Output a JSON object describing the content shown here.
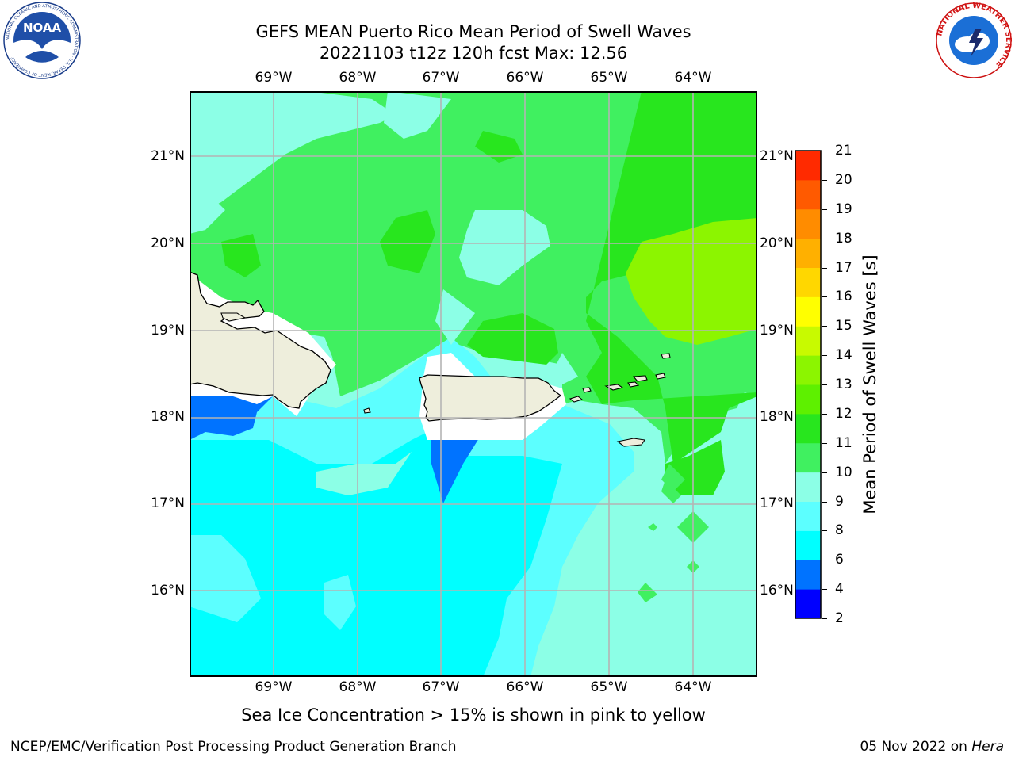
{
  "title_line1": "GEFS MEAN Puerto Rico Mean Period of Swell Waves",
  "title_line2": "20221103 t12z 120h fcst   Max: 12.56",
  "lon_ticks": [
    "69°W",
    "68°W",
    "67°W",
    "66°W",
    "65°W",
    "64°W"
  ],
  "lat_ticks": [
    "21°N",
    "20°N",
    "19°N",
    "18°N",
    "17°N",
    "16°N"
  ],
  "colorbar": {
    "label": "Mean Period of Swell Waves [s]",
    "ticks": [
      "2",
      "4",
      "6",
      "8",
      "9",
      "10",
      "11",
      "12",
      "13",
      "14",
      "15",
      "16",
      "17",
      "18",
      "19",
      "20",
      "21"
    ],
    "colors": [
      "#0000ff",
      "#0073ff",
      "#00ffff",
      "#5cffff",
      "#8cffe6",
      "#40f060",
      "#28e61e",
      "#5ef000",
      "#8cf500",
      "#c8fa00",
      "#ffff00",
      "#ffd700",
      "#ffb000",
      "#ff8c00",
      "#ff5a00",
      "#ff2a00",
      "#ff0000"
    ]
  },
  "ice_note": "Sea Ice Concentration > 15% is shown in pink to yellow",
  "footer_left": "NCEP/EMC/Verification Post Processing Product Generation Branch",
  "footer_date": "05 Nov 2022 on",
  "footer_host": "Hera",
  "noaa_logo": {
    "text": "NOAA",
    "ring_text": "NATIONAL OCEANIC AND ATMOSPHERIC ADMINISTRATION · U.S. DEPARTMENT OF COMMERCE"
  },
  "nws_logo": {
    "ring_text": "NATIONAL WEATHER SERVICE"
  },
  "map": {
    "lon_range": [
      -70.0,
      -63.25
    ],
    "lat_range": [
      15.0,
      21.75
    ]
  }
}
